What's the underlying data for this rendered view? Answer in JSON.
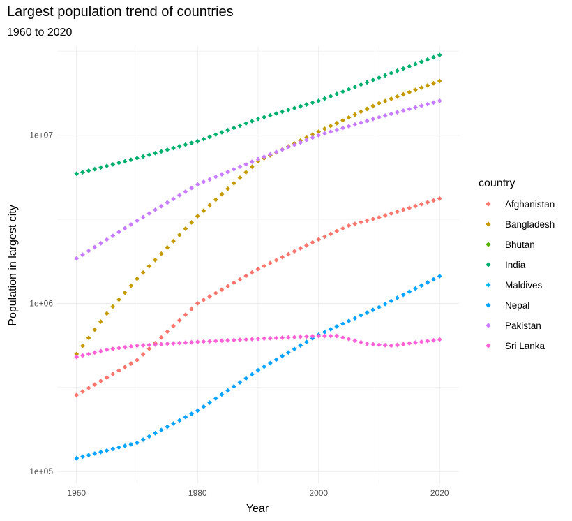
{
  "chart_data": {
    "type": "scatter",
    "title": "Largest population trend of countries",
    "subtitle": "1960 to 2020",
    "xlabel": "Year",
    "ylabel": "Population in largest city",
    "xlim": [
      1960,
      2020
    ],
    "ylim": [
      100000,
      30000000
    ],
    "y_scale": "log10",
    "x_ticks": [
      1960,
      1980,
      2000,
      2020
    ],
    "x_tick_labels": [
      "1960",
      "1980",
      "2000",
      "2020"
    ],
    "y_ticks": [
      100000,
      1000000,
      10000000
    ],
    "y_tick_labels": [
      "1e+05",
      "1e+06",
      "1e+07"
    ],
    "grid": true,
    "legend": {
      "title": "country",
      "position": "right"
    },
    "series": [
      {
        "name": "Afghanistan",
        "color": "#F8766D",
        "anchors": [
          [
            1960,
            285000
          ],
          [
            1970,
            460000
          ],
          [
            1980,
            1000000
          ],
          [
            1990,
            1600000
          ],
          [
            2000,
            2400000
          ],
          [
            2005,
            2900000
          ],
          [
            2010,
            3250000
          ],
          [
            2020,
            4200000
          ]
        ]
      },
      {
        "name": "Bangladesh",
        "color": "#C49A00",
        "anchors": [
          [
            1960,
            500000
          ],
          [
            1965,
            870000
          ],
          [
            1970,
            1400000
          ],
          [
            1980,
            3300000
          ],
          [
            1990,
            7000000
          ],
          [
            2000,
            10500000
          ],
          [
            2010,
            15500000
          ],
          [
            2020,
            21000000
          ]
        ]
      },
      {
        "name": "Bhutan",
        "color": "#53B400",
        "anchors": []
      },
      {
        "name": "India",
        "color": "#00B06F",
        "anchors": [
          [
            1960,
            5900000
          ],
          [
            1970,
            7300000
          ],
          [
            1980,
            9200000
          ],
          [
            1990,
            12500000
          ],
          [
            2000,
            16000000
          ],
          [
            2010,
            22000000
          ],
          [
            2020,
            30000000
          ]
        ]
      },
      {
        "name": "Maldives",
        "color": "#00B6EB",
        "anchors": []
      },
      {
        "name": "Nepal",
        "color": "#06A4FF",
        "anchors": [
          [
            1960,
            120000
          ],
          [
            1970,
            148000
          ],
          [
            1980,
            230000
          ],
          [
            1990,
            400000
          ],
          [
            2000,
            650000
          ],
          [
            2010,
            950000
          ],
          [
            2020,
            1450000
          ]
        ]
      },
      {
        "name": "Pakistan",
        "color": "#C77CFF",
        "anchors": [
          [
            1960,
            1850000
          ],
          [
            1970,
            3100000
          ],
          [
            1980,
            5100000
          ],
          [
            1990,
            7200000
          ],
          [
            2000,
            10000000
          ],
          [
            2010,
            12800000
          ],
          [
            2020,
            16000000
          ]
        ]
      },
      {
        "name": "Sri Lanka",
        "color": "#FB61D7",
        "anchors": [
          [
            1960,
            480000
          ],
          [
            1965,
            530000
          ],
          [
            1970,
            560000
          ],
          [
            1980,
            590000
          ],
          [
            1990,
            615000
          ],
          [
            2000,
            640000
          ],
          [
            2003,
            640000
          ],
          [
            2008,
            575000
          ],
          [
            2012,
            560000
          ],
          [
            2020,
            610000
          ]
        ]
      }
    ]
  }
}
